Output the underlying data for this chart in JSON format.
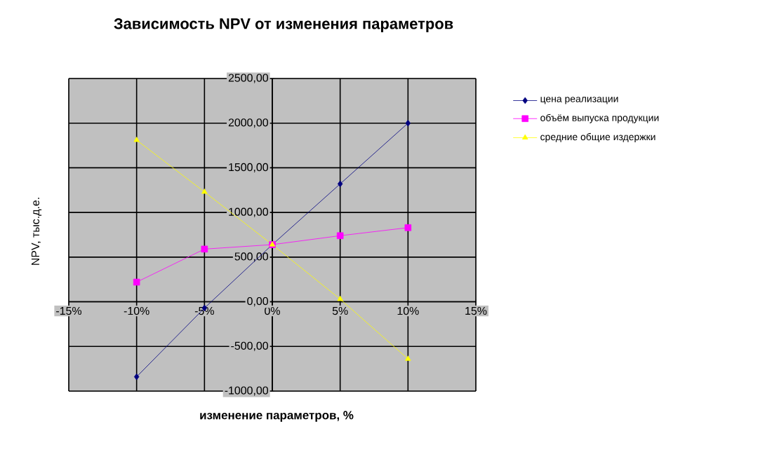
{
  "chart_data": {
    "type": "line",
    "title": "Зависимость NPV от изменения параметров",
    "xlabel": "изменение параметров, %",
    "ylabel": "NPV, тыс.д.е.",
    "x": [
      -10,
      -5,
      0,
      5,
      10
    ],
    "series": [
      {
        "name": "цена реализации",
        "color": "#000080",
        "marker": "diamond",
        "values": [
          -840,
          -70,
          640,
          1320,
          2000
        ]
      },
      {
        "name": "объём выпуска продукции",
        "color": "#ff00ff",
        "marker": "square",
        "values": [
          220,
          590,
          640,
          740,
          830
        ]
      },
      {
        "name": "средние общие издержки",
        "color": "#ffff00",
        "marker": "triangle",
        "values": [
          1810,
          1230,
          640,
          30,
          -640
        ]
      }
    ],
    "xlim": [
      -15,
      15
    ],
    "ylim": [
      -1000,
      2500
    ],
    "xticks": [
      {
        "value": -15,
        "label": "-15%"
      },
      {
        "value": -10,
        "label": "-10%"
      },
      {
        "value": -5,
        "label": "-5%"
      },
      {
        "value": 0,
        "label": "0%"
      },
      {
        "value": 5,
        "label": "5%"
      },
      {
        "value": 10,
        "label": "10%"
      },
      {
        "value": 15,
        "label": "15%"
      }
    ],
    "yticks": [
      {
        "value": -1000,
        "label": "-1000,00"
      },
      {
        "value": -500,
        "label": "-500,00"
      },
      {
        "value": 0,
        "label": "0,00"
      },
      {
        "value": 500,
        "label": "500,00"
      },
      {
        "value": 1000,
        "label": "1000,00"
      },
      {
        "value": 1500,
        "label": "1500,00"
      },
      {
        "value": 2000,
        "label": "2000,00"
      },
      {
        "value": 2500,
        "label": "2500,00"
      }
    ],
    "grid": true,
    "legend": "right",
    "line_style": "solid"
  }
}
